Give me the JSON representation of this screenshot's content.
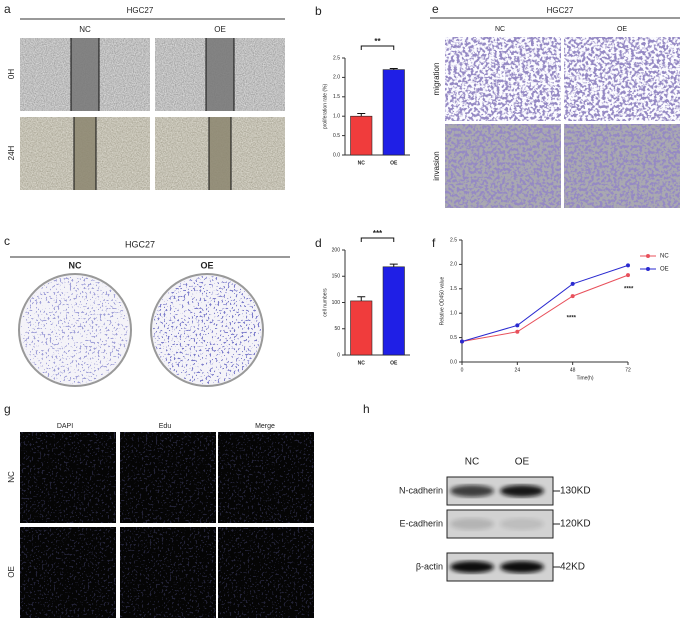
{
  "panels": {
    "a": {
      "label": "a",
      "title": "HGC27",
      "columns": [
        "NC",
        "OE"
      ],
      "rows": [
        "0H",
        "24H"
      ]
    },
    "c": {
      "label": "c",
      "title": "HGC27",
      "columns": [
        "NC",
        "OE"
      ]
    },
    "e": {
      "label": "e",
      "title": "HGC27",
      "columns": [
        "NC",
        "OE"
      ],
      "rows": [
        "migration",
        "invasion"
      ]
    },
    "g": {
      "label": "g",
      "columns": [
        "DAPI",
        "Edu",
        "Merge"
      ],
      "rows": [
        "NC",
        "OE"
      ]
    },
    "h": {
      "label": "h",
      "columns": [
        "NC",
        "OE"
      ],
      "rows": [
        "N-cadherin",
        "E-cadherin",
        "β-actin"
      ],
      "sizes": [
        "130KD",
        "120KD",
        "42KD"
      ]
    }
  },
  "chart_data": [
    {
      "type": "bar",
      "label": "b",
      "ylabel": "proliferation rate (%)",
      "categories": [
        "NC",
        "OE"
      ],
      "values": [
        1.0,
        2.2
      ],
      "errors": [
        0.07,
        0.03
      ],
      "colors": [
        "#f03c3c",
        "#1f1fe6"
      ],
      "ylim": [
        0,
        2.5
      ],
      "yticks": [
        {
          "value": 0,
          "label": "0.0"
        },
        0.5,
        {
          "value": 1,
          "label": "1.0"
        },
        1.5,
        {
          "value": 2,
          "label": "2.0"
        },
        2.5
      ],
      "significance": "**"
    },
    {
      "type": "bar",
      "label": "d",
      "ylabel": "cell numbers",
      "categories": [
        "NC",
        "OE"
      ],
      "values": [
        103,
        168
      ],
      "errors": [
        8,
        5
      ],
      "colors": [
        "#f03c3c",
        "#1f1fe6"
      ],
      "ylim": [
        0,
        200
      ],
      "yticks": [
        0,
        50,
        100,
        150,
        200
      ],
      "significance": "***"
    },
    {
      "type": "line",
      "label": "f",
      "ylabel": "Relative OD450 value",
      "xlabel": "Time(h)",
      "x": [
        0,
        24,
        48,
        72
      ],
      "xlim": [
        0,
        72
      ],
      "xticks": [
        0,
        24,
        48,
        72
      ],
      "ylim": [
        0,
        2.5
      ],
      "yticks": [
        {
          "value": 0,
          "label": "0.0"
        },
        0.5,
        {
          "value": 1,
          "label": "1.0"
        },
        1.5,
        {
          "value": 2,
          "label": "2.0"
        },
        2.5
      ],
      "series": [
        {
          "name": "NC",
          "color": "#e8505b",
          "values": [
            0.42,
            0.62,
            1.35,
            1.78
          ]
        },
        {
          "name": "OE",
          "color": "#2a2ad0",
          "values": [
            0.42,
            0.75,
            1.6,
            1.98
          ]
        }
      ],
      "annotations": [
        "****",
        "****"
      ],
      "legend": "upper right"
    }
  ]
}
